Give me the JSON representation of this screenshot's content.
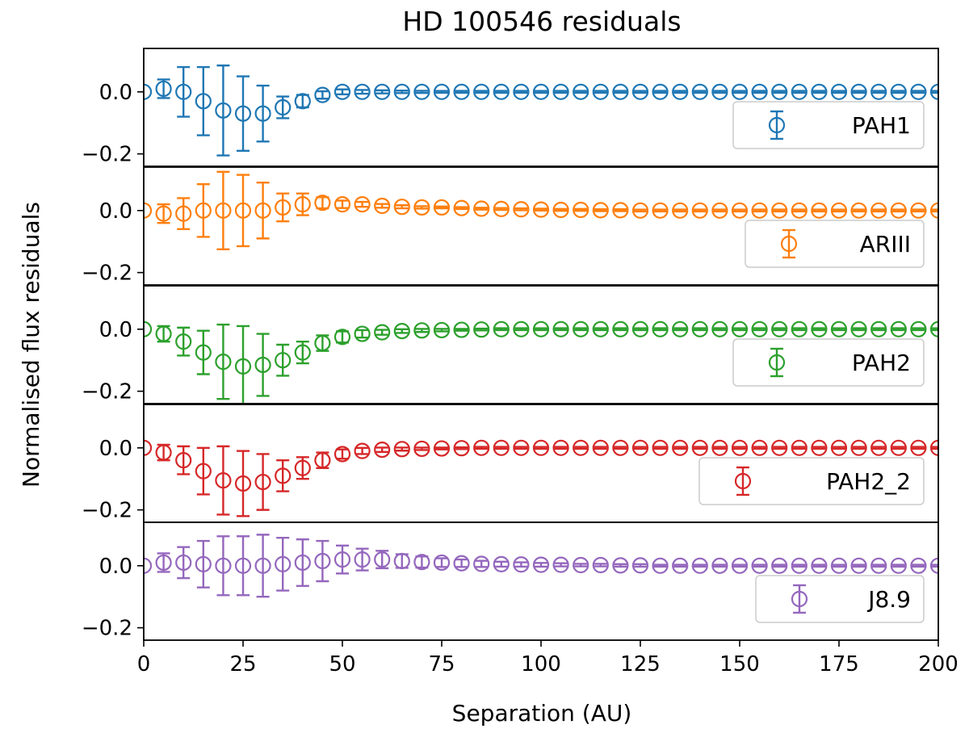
{
  "chart_data": {
    "type": "scatter",
    "title": "HD 100546 residuals",
    "xlabel": "Separation (AU)",
    "ylabel": "Normalised flux residuals",
    "xlim": [
      0,
      200
    ],
    "ylim": [
      -0.24,
      0.14
    ],
    "x_ticks": [
      0,
      25,
      50,
      75,
      100,
      125,
      150,
      175,
      200
    ],
    "x_tick_labels": [
      "0",
      "25",
      "50",
      "75",
      "100",
      "125",
      "150",
      "175",
      "200"
    ],
    "y_ticks": [
      0.0,
      -0.2
    ],
    "y_tick_labels": [
      "0.0",
      "−0.2"
    ],
    "x": [
      0,
      5,
      10,
      15,
      20,
      25,
      30,
      35,
      40,
      45,
      50,
      55,
      60,
      65,
      70,
      75,
      80,
      85,
      90,
      95,
      100,
      105,
      110,
      115,
      120,
      125,
      130,
      135,
      140,
      145,
      150,
      155,
      160,
      165,
      170,
      175,
      180,
      185,
      190,
      195,
      200
    ],
    "series": [
      {
        "name": "PAH1",
        "color": "#1f77b4",
        "legend_position": "lower-right",
        "values": [
          0.0,
          0.01,
          0.0,
          -0.03,
          -0.06,
          -0.07,
          -0.07,
          -0.05,
          -0.03,
          -0.01,
          0.0,
          0.0,
          0.0,
          0.0,
          0.0,
          0.0,
          0.0,
          0.0,
          0.0,
          0.0,
          0.0,
          0.0,
          0.0,
          0.0,
          0.0,
          0.0,
          0.0,
          0.0,
          0.0,
          0.0,
          0.0,
          0.0,
          0.0,
          0.0,
          0.0,
          0.0,
          0.0,
          0.0,
          0.0,
          0.0,
          0.0
        ],
        "errors": [
          0.0,
          0.03,
          0.08,
          0.11,
          0.145,
          0.12,
          0.09,
          0.035,
          0.02,
          0.012,
          0.008,
          0.006,
          0.005,
          0.004,
          0.0035,
          0.003,
          0.003,
          0.003,
          0.003,
          0.003,
          0.003,
          0.003,
          0.003,
          0.003,
          0.003,
          0.003,
          0.003,
          0.003,
          0.003,
          0.003,
          0.003,
          0.003,
          0.003,
          0.003,
          0.003,
          0.003,
          0.003,
          0.003,
          0.003,
          0.003,
          0.003
        ]
      },
      {
        "name": "ARIII",
        "color": "#ff7f0e",
        "legend_position": "lower-right",
        "values": [
          0.0,
          -0.01,
          -0.01,
          0.0,
          0.0,
          0.0,
          0.0,
          0.01,
          0.02,
          0.025,
          0.02,
          0.02,
          0.015,
          0.012,
          0.01,
          0.01,
          0.008,
          0.006,
          0.005,
          0.004,
          0.003,
          0.002,
          0.002,
          0.001,
          0.001,
          0.0,
          0.0,
          0.0,
          0.0,
          0.0,
          0.0,
          0.0,
          0.0,
          0.0,
          0.0,
          0.0,
          0.0,
          0.0,
          0.0,
          0.0,
          0.0
        ],
        "errors": [
          0.0,
          0.03,
          0.05,
          0.085,
          0.125,
          0.115,
          0.09,
          0.045,
          0.035,
          0.018,
          0.012,
          0.008,
          0.006,
          0.005,
          0.004,
          0.003,
          0.003,
          0.003,
          0.003,
          0.003,
          0.003,
          0.003,
          0.003,
          0.003,
          0.003,
          0.003,
          0.003,
          0.003,
          0.003,
          0.003,
          0.003,
          0.003,
          0.003,
          0.003,
          0.003,
          0.003,
          0.003,
          0.003,
          0.003,
          0.003,
          0.003
        ]
      },
      {
        "name": "PAH2",
        "color": "#2ca02c",
        "legend_position": "lower-right",
        "values": [
          0.0,
          -0.015,
          -0.04,
          -0.075,
          -0.105,
          -0.12,
          -0.115,
          -0.1,
          -0.075,
          -0.045,
          -0.025,
          -0.015,
          -0.01,
          -0.006,
          -0.004,
          -0.003,
          -0.002,
          -0.001,
          0.0,
          0.0,
          0.0,
          0.0,
          0.0,
          0.0,
          0.0,
          0.0,
          0.0,
          0.0,
          0.0,
          0.0,
          0.0,
          0.0,
          0.0,
          0.0,
          0.0,
          0.0,
          0.0,
          0.0,
          0.0,
          0.0,
          0.0
        ],
        "errors": [
          0.0,
          0.025,
          0.045,
          0.07,
          0.12,
          0.13,
          0.1,
          0.05,
          0.035,
          0.025,
          0.018,
          0.012,
          0.008,
          0.006,
          0.005,
          0.004,
          0.003,
          0.003,
          0.003,
          0.003,
          0.003,
          0.003,
          0.003,
          0.003,
          0.003,
          0.003,
          0.003,
          0.003,
          0.003,
          0.003,
          0.003,
          0.003,
          0.003,
          0.003,
          0.003,
          0.003,
          0.003,
          0.003,
          0.003,
          0.003,
          0.003
        ]
      },
      {
        "name": "PAH2_2",
        "color": "#d62728",
        "legend_position": "lower-right",
        "values": [
          0.0,
          -0.015,
          -0.04,
          -0.075,
          -0.105,
          -0.115,
          -0.11,
          -0.09,
          -0.065,
          -0.04,
          -0.02,
          -0.01,
          -0.006,
          -0.004,
          -0.003,
          -0.002,
          -0.001,
          0.0,
          0.0,
          0.0,
          0.0,
          0.0,
          0.0,
          0.0,
          0.0,
          0.0,
          0.0,
          0.0,
          0.0,
          0.0,
          0.0,
          0.0,
          0.0,
          0.0,
          0.0,
          0.0,
          0.0,
          0.0,
          0.0,
          0.0,
          0.0
        ],
        "errors": [
          0.0,
          0.025,
          0.045,
          0.075,
          0.11,
          0.105,
          0.09,
          0.05,
          0.035,
          0.025,
          0.015,
          0.01,
          0.007,
          0.005,
          0.004,
          0.003,
          0.003,
          0.003,
          0.003,
          0.003,
          0.003,
          0.003,
          0.003,
          0.003,
          0.003,
          0.003,
          0.003,
          0.003,
          0.003,
          0.003,
          0.003,
          0.003,
          0.003,
          0.003,
          0.003,
          0.003,
          0.003,
          0.003,
          0.003,
          0.003,
          0.003
        ]
      },
      {
        "name": "J8.9",
        "color": "#9467bd",
        "legend_position": "lower-right",
        "values": [
          0.0,
          0.01,
          0.01,
          0.005,
          0.0,
          0.0,
          0.0,
          0.005,
          0.01,
          0.015,
          0.02,
          0.02,
          0.02,
          0.015,
          0.012,
          0.01,
          0.008,
          0.006,
          0.005,
          0.004,
          0.003,
          0.003,
          0.002,
          0.002,
          0.001,
          0.001,
          0.0,
          0.0,
          0.0,
          0.0,
          0.0,
          0.0,
          0.0,
          0.0,
          0.0,
          0.0,
          0.0,
          0.0,
          0.0,
          0.0,
          0.0
        ],
        "errors": [
          0.0,
          0.03,
          0.05,
          0.075,
          0.095,
          0.095,
          0.1,
          0.085,
          0.075,
          0.065,
          0.045,
          0.035,
          0.028,
          0.022,
          0.018,
          0.014,
          0.012,
          0.01,
          0.008,
          0.007,
          0.006,
          0.005,
          0.004,
          0.004,
          0.004,
          0.004,
          0.003,
          0.003,
          0.003,
          0.003,
          0.003,
          0.003,
          0.003,
          0.003,
          0.003,
          0.003,
          0.003,
          0.003,
          0.003,
          0.003,
          0.003
        ]
      }
    ]
  }
}
